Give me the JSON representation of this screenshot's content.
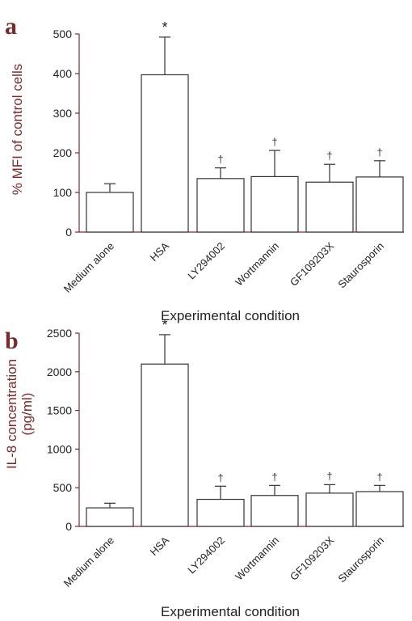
{
  "panels": [
    {
      "letter": "a",
      "ylabel": "% MFI of control cells"
    },
    {
      "letter": "b",
      "ylabel_line1": "IL-8 concentration",
      "ylabel_line2": "(pg/ml)"
    }
  ],
  "chart_data": [
    {
      "type": "bar",
      "panel": "a",
      "categories": [
        "Medium alone",
        "HSA",
        "LY294002",
        "Wortmannin",
        "GF109203X",
        "Staurosporin"
      ],
      "values": [
        100,
        397,
        135,
        140,
        126,
        139
      ],
      "error": [
        22,
        95,
        27,
        66,
        45,
        41
      ],
      "annotations": [
        "",
        "*",
        "†",
        "†",
        "†",
        "†"
      ],
      "xlabel": "Experimental condition",
      "ylabel": "% MFI of control cells",
      "ylim": [
        0,
        500
      ],
      "yticks": [
        0,
        100,
        200,
        300,
        400,
        500
      ],
      "bar_color": "#ffffff",
      "axis_color": "#7a2a2a"
    },
    {
      "type": "bar",
      "panel": "b",
      "categories": [
        "Medium alone",
        "HSA",
        "LY294002",
        "Wortmannin",
        "GF109203X",
        "Staurosporin"
      ],
      "values": [
        240,
        2100,
        350,
        400,
        430,
        450
      ],
      "error": [
        60,
        380,
        170,
        130,
        110,
        80
      ],
      "annotations": [
        "",
        "*",
        "†",
        "†",
        "†",
        "†"
      ],
      "xlabel": "Experimental condition",
      "ylabel": "IL-8 concentration (pg/ml)",
      "ylim": [
        0,
        2500
      ],
      "yticks": [
        0,
        500,
        1000,
        1500,
        2000,
        2500
      ],
      "bar_color": "#ffffff",
      "axis_color": "#7a2a2a"
    }
  ]
}
